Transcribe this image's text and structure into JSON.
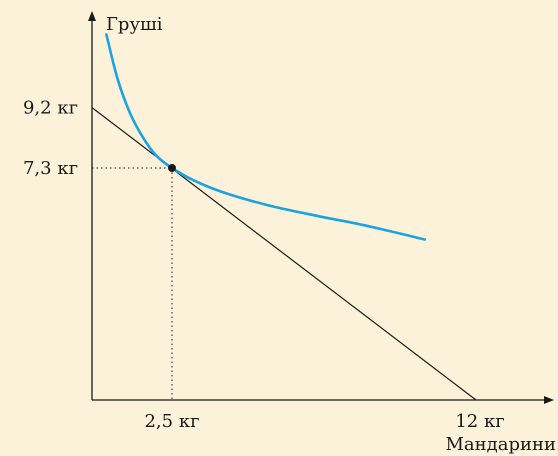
{
  "chart_data": {
    "type": "line",
    "xlabel": "Мандарини",
    "ylabel": "Груші",
    "xlim": [
      0,
      12
    ],
    "ylim": [
      0,
      11.8
    ],
    "x_ticks": [
      {
        "value": 2.5,
        "label": "2,5 кг"
      },
      {
        "value": 12,
        "label": "12 кг"
      }
    ],
    "y_ticks": [
      {
        "value": 9.2,
        "label": "9,2 кг"
      },
      {
        "value": 7.3,
        "label": "7,3 кг"
      }
    ],
    "budget_line": {
      "x": [
        0,
        12
      ],
      "y": [
        9.2,
        0
      ]
    },
    "indifference_curve": {
      "x": [
        0.45,
        0.8,
        1.2,
        1.6,
        2.0,
        2.5,
        3.2,
        4.2,
        5.5,
        7.0,
        8.5,
        10.4
      ],
      "y": [
        11.5,
        10.1,
        9.0,
        8.25,
        7.7,
        7.3,
        6.9,
        6.5,
        6.13,
        5.8,
        5.5,
        5.05
      ]
    },
    "tangent_point": {
      "x": 2.5,
      "y": 7.3
    },
    "grid": false,
    "legend": "none"
  },
  "colors": {
    "background": "#fcf2da",
    "axis": "#1a1a1a",
    "budget_line": "#1a1a1a",
    "curve": "#1aa3e0",
    "point": "#1a1a1a"
  }
}
